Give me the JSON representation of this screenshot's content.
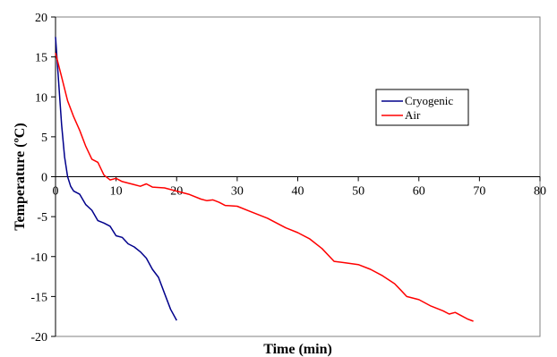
{
  "chart_data": {
    "type": "line",
    "title": "",
    "xlabel": "Time (min)",
    "ylabel": "Temperature (ºC)",
    "xlim": [
      0,
      80
    ],
    "ylim": [
      -20,
      20
    ],
    "x_ticks": [
      0,
      10,
      20,
      30,
      40,
      50,
      60,
      70,
      80
    ],
    "y_ticks": [
      20,
      15,
      10,
      5,
      0,
      -5,
      -10,
      -15,
      -20
    ],
    "x_tick_labels": [
      "0",
      "10",
      "20",
      "30",
      "40",
      "50",
      "60",
      "70",
      "80"
    ],
    "y_tick_labels": [
      "20",
      "15",
      "10",
      "5",
      "0",
      "-5",
      "-10",
      "-15",
      "-20"
    ],
    "grid": false,
    "legend_position": "right",
    "series": [
      {
        "name": "Cryogenic",
        "color": "#00008b",
        "points": [
          [
            0,
            17.5
          ],
          [
            0.5,
            12
          ],
          [
            1,
            6.5
          ],
          [
            1.5,
            2.5
          ],
          [
            2,
            0
          ],
          [
            2.5,
            -1.2
          ],
          [
            3,
            -1.8
          ],
          [
            4,
            -2.2
          ],
          [
            5,
            -3.5
          ],
          [
            6,
            -4.2
          ],
          [
            7,
            -5.5
          ],
          [
            8,
            -5.8
          ],
          [
            9,
            -6.2
          ],
          [
            10,
            -7.4
          ],
          [
            11,
            -7.6
          ],
          [
            12,
            -8.4
          ],
          [
            13,
            -8.8
          ],
          [
            14,
            -9.4
          ],
          [
            15,
            -10.2
          ],
          [
            16,
            -11.6
          ],
          [
            17,
            -12.6
          ],
          [
            18,
            -14.6
          ],
          [
            19,
            -16.6
          ],
          [
            20,
            -18
          ]
        ]
      },
      {
        "name": "Air",
        "color": "#ff0000",
        "points": [
          [
            0,
            15.5
          ],
          [
            1,
            12.5
          ],
          [
            2,
            9.5
          ],
          [
            3,
            7.5
          ],
          [
            4,
            5.8
          ],
          [
            5,
            3.8
          ],
          [
            6,
            2.2
          ],
          [
            7,
            1.8
          ],
          [
            8,
            0.2
          ],
          [
            9,
            -0.4
          ],
          [
            10,
            -0.2
          ],
          [
            11,
            -0.6
          ],
          [
            12,
            -0.8
          ],
          [
            13,
            -1.0
          ],
          [
            14,
            -1.2
          ],
          [
            15,
            -0.9
          ],
          [
            16,
            -1.3
          ],
          [
            18,
            -1.4
          ],
          [
            20,
            -1.8
          ],
          [
            22,
            -2.2
          ],
          [
            24,
            -2.8
          ],
          [
            25,
            -3.0
          ],
          [
            26,
            -2.9
          ],
          [
            27,
            -3.2
          ],
          [
            28,
            -3.6
          ],
          [
            30,
            -3.7
          ],
          [
            32,
            -4.3
          ],
          [
            35,
            -5.2
          ],
          [
            38,
            -6.4
          ],
          [
            40,
            -7.0
          ],
          [
            42,
            -7.8
          ],
          [
            44,
            -9.0
          ],
          [
            46,
            -10.6
          ],
          [
            48,
            -10.8
          ],
          [
            50,
            -11.0
          ],
          [
            52,
            -11.6
          ],
          [
            54,
            -12.4
          ],
          [
            56,
            -13.4
          ],
          [
            57,
            -14.2
          ],
          [
            58,
            -15.0
          ],
          [
            60,
            -15.4
          ],
          [
            62,
            -16.2
          ],
          [
            64,
            -16.8
          ],
          [
            65,
            -17.2
          ],
          [
            66,
            -17.0
          ],
          [
            67,
            -17.4
          ],
          [
            68,
            -17.8
          ],
          [
            69,
            -18.1
          ]
        ]
      }
    ]
  }
}
